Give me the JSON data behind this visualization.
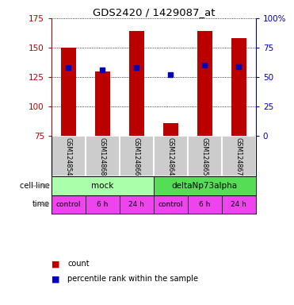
{
  "title": "GDS2420 / 1429087_at",
  "samples": [
    "GSM124854",
    "GSM124868",
    "GSM124866",
    "GSM124864",
    "GSM124865",
    "GSM124867"
  ],
  "bar_values": [
    150,
    130,
    164,
    86,
    164,
    158
  ],
  "dot_values": [
    133,
    131,
    133,
    127,
    135,
    134
  ],
  "y_min": 75,
  "y_max": 175,
  "y_ticks_left": [
    75,
    100,
    125,
    150,
    175
  ],
  "y_ticks_right_vals": [
    0,
    25,
    50,
    75,
    100
  ],
  "bar_color": "#BB0000",
  "dot_color": "#0000BB",
  "cell_line_labels": [
    "mock",
    "deltaNp73alpha"
  ],
  "cell_line_spans": [
    [
      0,
      3
    ],
    [
      3,
      6
    ]
  ],
  "cell_line_colors": [
    "#AAFFAA",
    "#55DD55"
  ],
  "time_labels": [
    "control",
    "6 h",
    "24 h",
    "control",
    "6 h",
    "24 h"
  ],
  "time_color": "#EE44EE",
  "legend_count_color": "#BB0000",
  "legend_pct_color": "#0000BB",
  "grid_color": "#888888",
  "sample_bg_color": "#CCCCCC",
  "left_label_arrow_color": "#888888"
}
